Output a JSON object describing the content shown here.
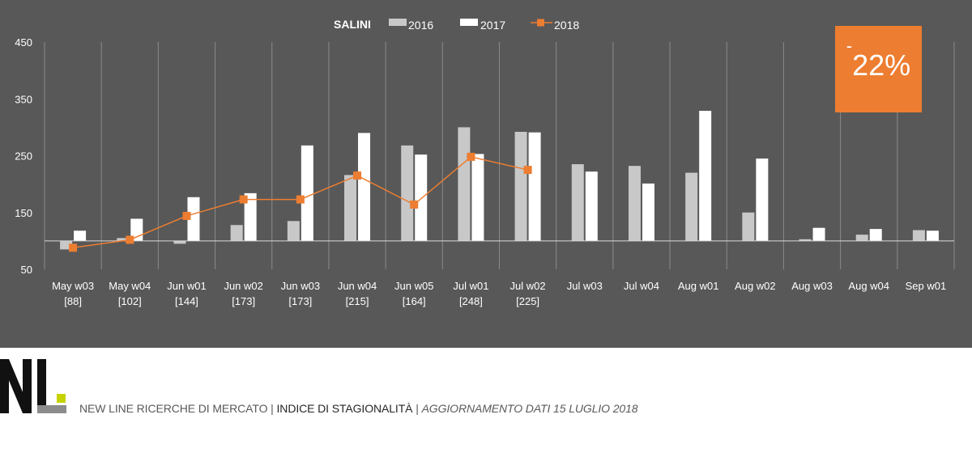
{
  "chart_data": {
    "type": "bar",
    "title": "SALINI",
    "categories": [
      "May w03",
      "May w04",
      "Jun w01",
      "Jun w02",
      "Jun w03",
      "Jun w04",
      "Jun w05",
      "Jul w01",
      "Jul w02",
      "Jul w03",
      "Jul w04",
      "Aug w01",
      "Aug w02",
      "Aug w03",
      "Aug w04",
      "Sep w01"
    ],
    "sublabels": [
      "[88]",
      "[102]",
      "[144]",
      "[173]",
      "[173]",
      "[215]",
      "[164]",
      "[248]",
      "[225]",
      "",
      "",
      "",
      "",
      "",
      "",
      ""
    ],
    "series": [
      {
        "name": "2016",
        "type": "bar",
        "color": "#C8C8C8",
        "values": [
          85,
          105,
          95,
          128,
          135,
          216,
          268,
          300,
          292,
          235,
          232,
          220,
          150,
          103,
          111,
          119
        ]
      },
      {
        "name": "2017",
        "type": "bar",
        "color": "#FFFFFF",
        "values": [
          118,
          139,
          177,
          184,
          268,
          290,
          252,
          253,
          291,
          222,
          201,
          329,
          245,
          123,
          121,
          118
        ]
      },
      {
        "name": "2018",
        "type": "line",
        "color": "#ED7D31",
        "values": [
          88,
          102,
          144,
          173,
          173,
          215,
          164,
          248,
          225,
          null,
          null,
          null,
          null,
          null,
          null,
          null
        ]
      }
    ],
    "baseline": 100,
    "ylim": [
      50,
      450
    ],
    "yticks": [
      50,
      150,
      250,
      350,
      450
    ],
    "legend_position": "top",
    "grid": "vertical separators"
  },
  "badge": {
    "sign": "-",
    "value": "22%"
  },
  "footer": {
    "company": "NEW LINE RICERCHE DI MERCATO",
    "separator": "|",
    "product": "INDICE DI STAGIONALITÀ",
    "update": "AGGIORNAMENTO DATI 15 LUGLIO 2018"
  },
  "colors": {
    "panel": "#585858",
    "accent": "#ED7D31",
    "logo_accent": "#C6D300"
  }
}
